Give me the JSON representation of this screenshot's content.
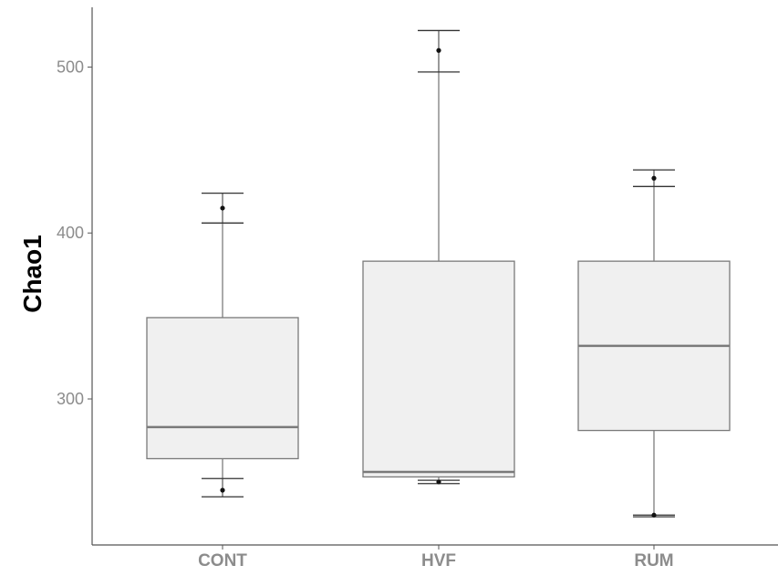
{
  "chart_data": {
    "type": "boxplot",
    "title": "",
    "xlabel": "",
    "ylabel": "Chao1",
    "ylim": [
      212,
      536
    ],
    "yticks": [
      300,
      400,
      500
    ],
    "grid": false,
    "legend": "none",
    "colors": {
      "box_fill": "#f0f0f0",
      "box_stroke": "#7a7a7a",
      "median": "#7a7a7a",
      "whisker": "#555555",
      "errorbar": "#333333",
      "point": "#111111",
      "axis": "#555555"
    },
    "categories": [
      "CONT",
      "HVF",
      "RUM"
    ],
    "boxes": [
      {
        "category": "CONT",
        "q1": 264,
        "median": 283,
        "q3": 349,
        "whisker_low": 241,
        "whisker_high": 424
      },
      {
        "category": "HVF",
        "q1": 253,
        "median": 256,
        "q3": 383,
        "whisker_low": 251,
        "whisker_high": 522
      },
      {
        "category": "RUM",
        "q1": 281,
        "median": 332,
        "q3": 383,
        "whisker_low": 230,
        "whisker_high": 438
      }
    ],
    "errorbars": [
      {
        "category": "CONT",
        "low": [
          241,
          252
        ],
        "high": [
          406,
          424
        ]
      },
      {
        "category": "HVF",
        "low": [
          249,
          251
        ],
        "high": [
          497,
          522
        ]
      },
      {
        "category": "RUM",
        "low": [
          229,
          230
        ],
        "high": [
          428,
          438
        ]
      }
    ],
    "points": [
      {
        "category": "CONT",
        "values": [
          415,
          245
        ]
      },
      {
        "category": "HVF",
        "values": [
          510,
          250
        ]
      },
      {
        "category": "RUM",
        "values": [
          433,
          230
        ]
      }
    ]
  }
}
